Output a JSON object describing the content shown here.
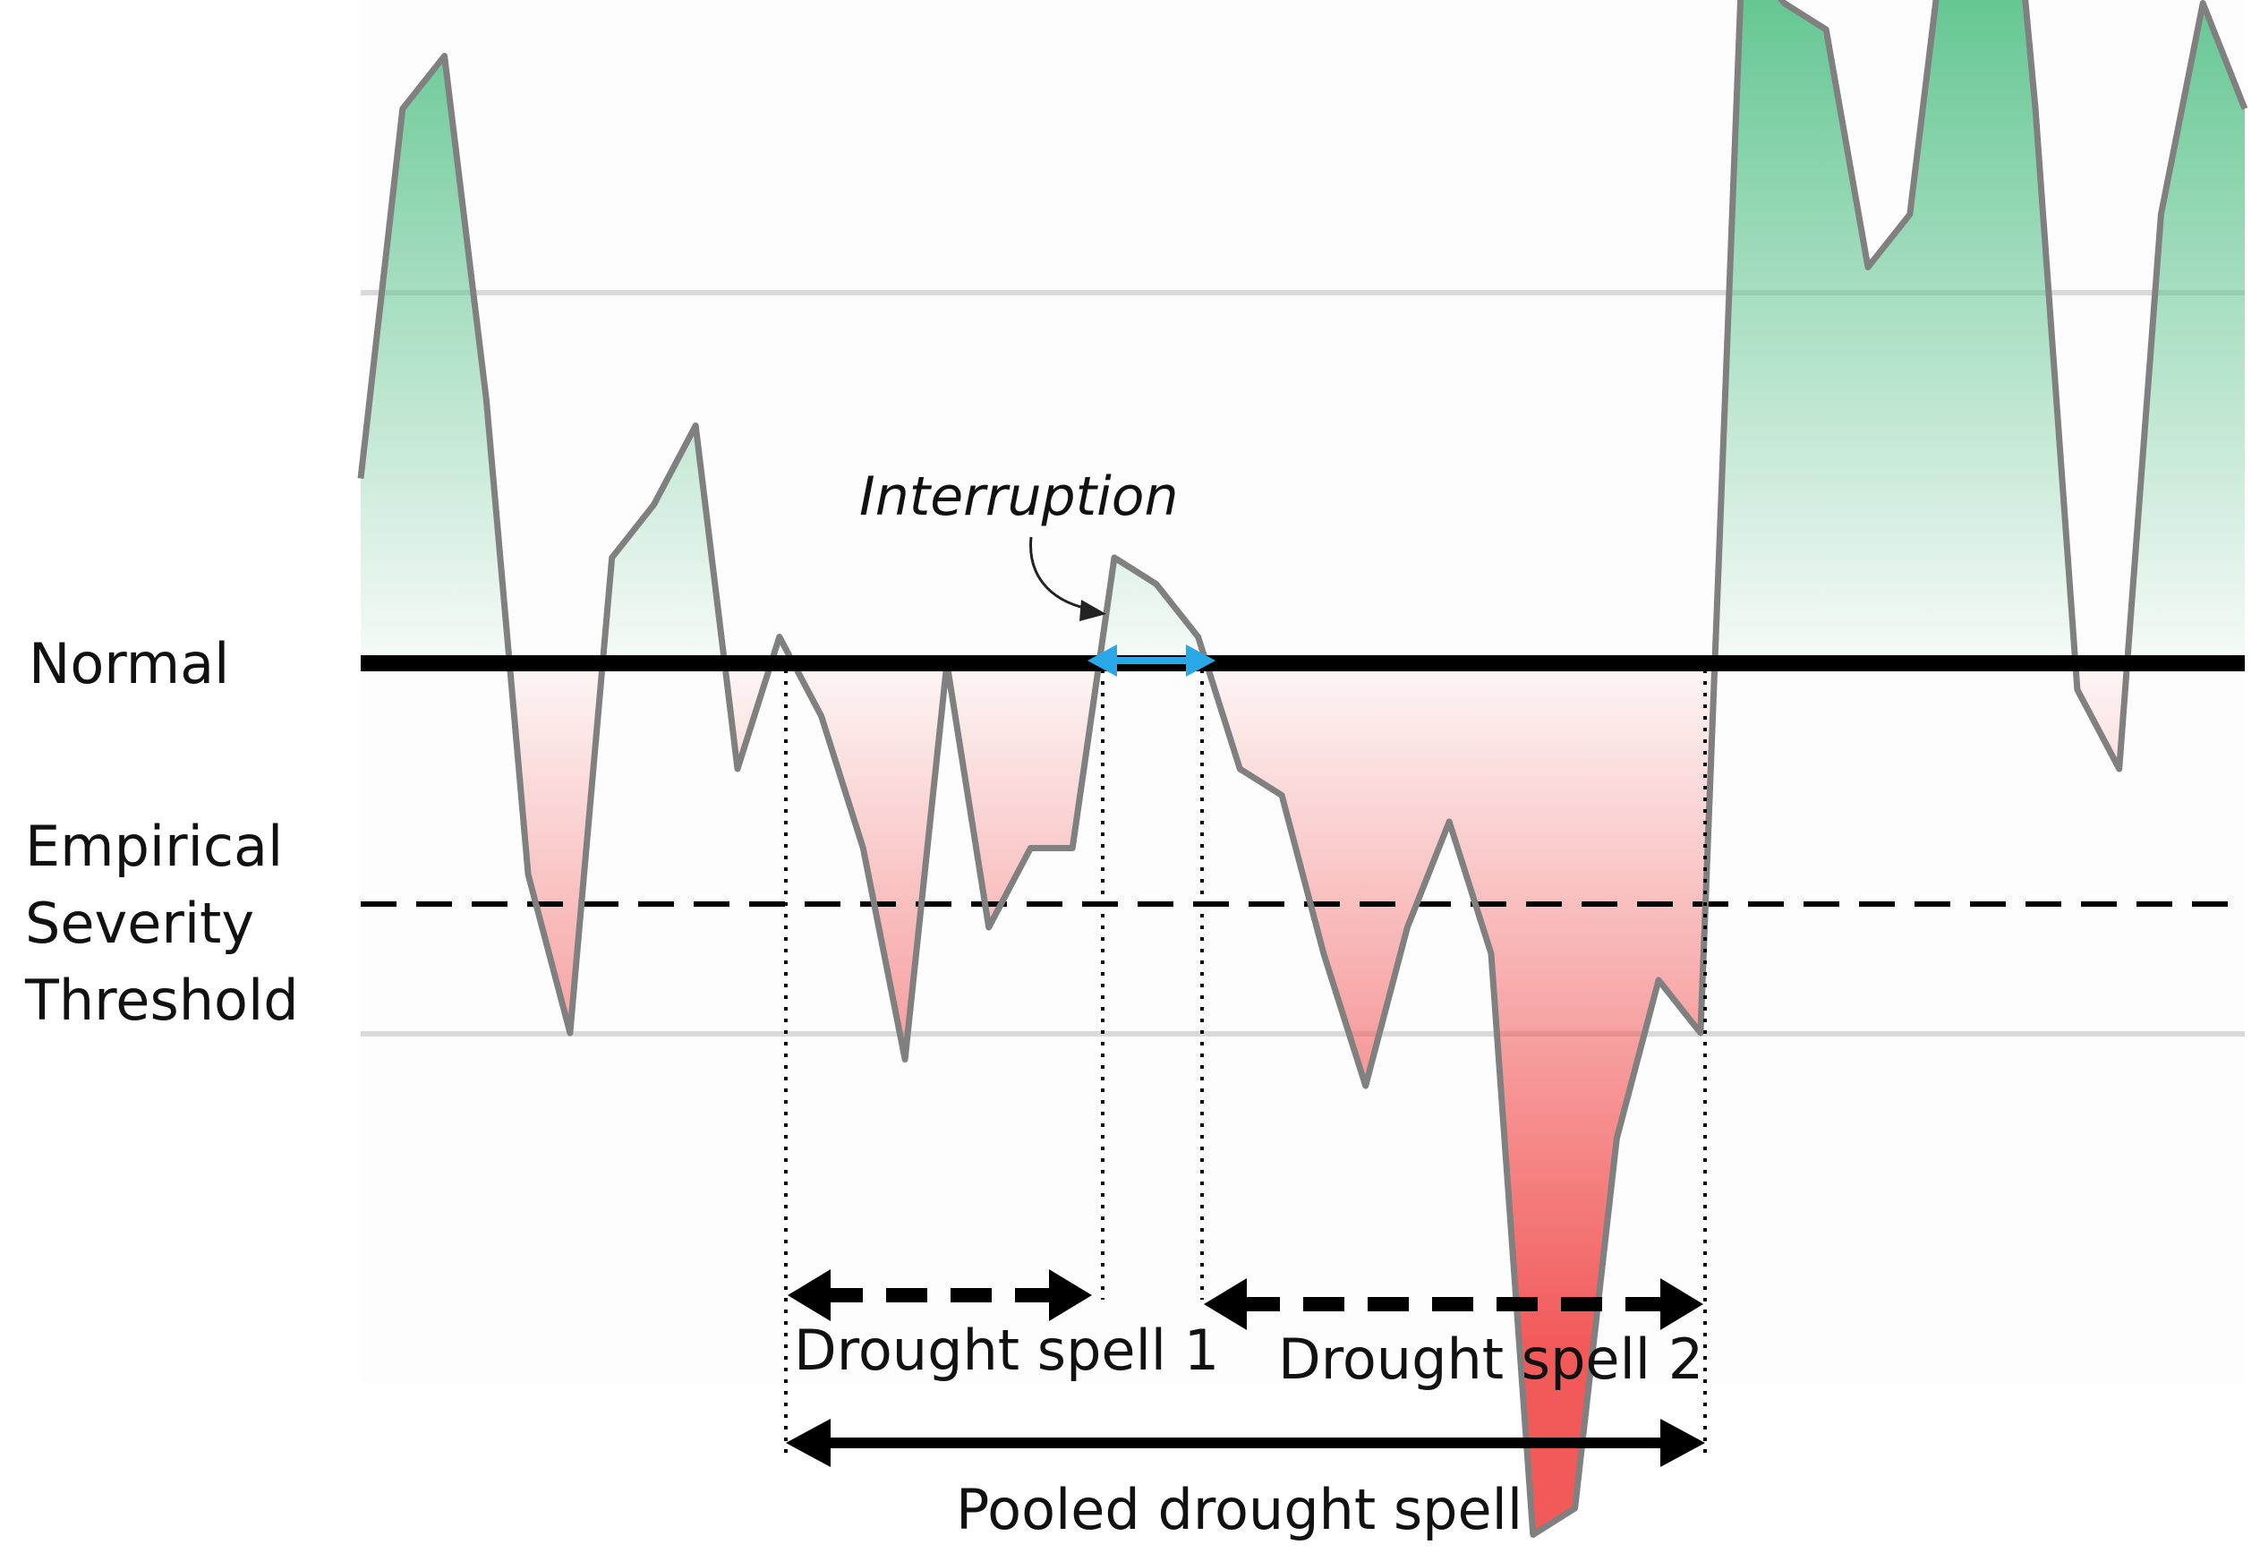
{
  "labels": {
    "normal": "Normal",
    "threshold": [
      "Empirical",
      "Severity",
      "Threshold"
    ],
    "interruption": "Interruption",
    "spell1": "Drought spell 1",
    "spell2": "Drought spell 2",
    "pooled": "Pooled drought spell"
  },
  "colors": {
    "line": "#808080",
    "normal_line": "#000000",
    "grid": "#d9d9d9",
    "wet_fill": "#5ec48e",
    "dry_fill": "#f25a5a",
    "interruption_arrow": "#29a8e8"
  },
  "chart_data": {
    "type": "area",
    "title": "",
    "xlabel": "",
    "ylabel": "",
    "baseline_label": "Normal",
    "threshold_label": "Empirical Severity Threshold",
    "series": [
      {
        "values": [
          0.35,
          1.05,
          1.15,
          0.5,
          -0.4,
          -0.7,
          0.2,
          0.3,
          0.45,
          -0.2,
          0.05,
          -0.1,
          -0.35,
          -0.75,
          0.0,
          -0.5,
          -0.35,
          -0.35,
          0.2,
          0.15,
          0.05,
          -0.2,
          -0.25,
          -0.55,
          -0.8,
          -0.5,
          -0.3,
          -0.55,
          -1.65,
          -1.6,
          -0.9,
          -0.6,
          -0.7,
          1.35,
          1.25,
          1.2,
          0.75,
          0.85,
          1.5,
          1.9,
          1.05,
          -0.05,
          -0.2,
          0.85,
          1.25,
          1.05
        ]
      }
    ]
  }
}
